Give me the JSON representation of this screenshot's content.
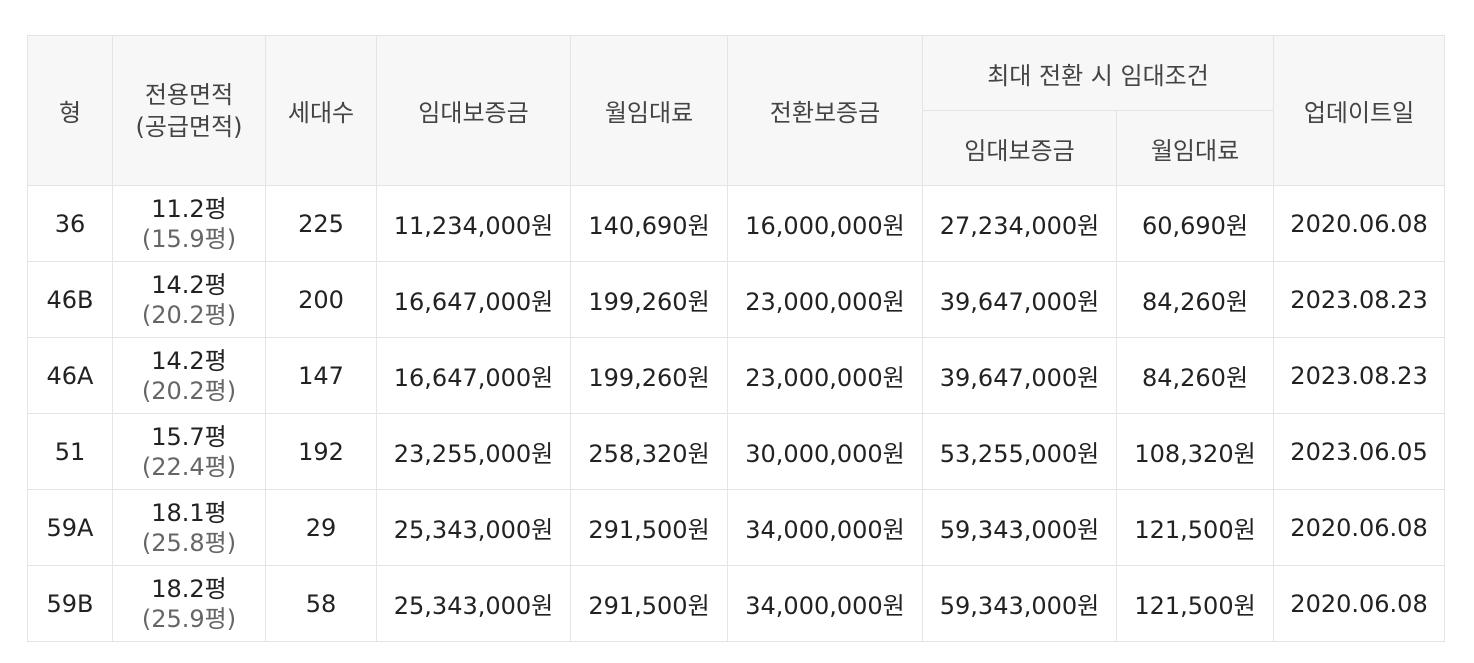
{
  "table": {
    "headers": {
      "type": "형",
      "area_line1": "전용면적",
      "area_line2": "(공급면적)",
      "households": "세대수",
      "deposit": "임대보증금",
      "monthly_rent": "월임대료",
      "conversion_deposit": "전환보증금",
      "max_conversion_group": "최대 전환 시 임대조건",
      "max_deposit": "임대보증금",
      "max_monthly_rent": "월임대료",
      "updated": "업데이트일"
    },
    "rows": [
      {
        "type": "36",
        "area": "11.2평",
        "supply_area": "(15.9평)",
        "households": "225",
        "deposit": "11,234,000원",
        "monthly_rent": "140,690원",
        "conversion_deposit": "16,000,000원",
        "max_deposit": "27,234,000원",
        "max_monthly_rent": "60,690원",
        "updated": "2020.06.08"
      },
      {
        "type": "46B",
        "area": "14.2평",
        "supply_area": "(20.2평)",
        "households": "200",
        "deposit": "16,647,000원",
        "monthly_rent": "199,260원",
        "conversion_deposit": "23,000,000원",
        "max_deposit": "39,647,000원",
        "max_monthly_rent": "84,260원",
        "updated": "2023.08.23"
      },
      {
        "type": "46A",
        "area": "14.2평",
        "supply_area": "(20.2평)",
        "households": "147",
        "deposit": "16,647,000원",
        "monthly_rent": "199,260원",
        "conversion_deposit": "23,000,000원",
        "max_deposit": "39,647,000원",
        "max_monthly_rent": "84,260원",
        "updated": "2023.08.23"
      },
      {
        "type": "51",
        "area": "15.7평",
        "supply_area": "(22.4평)",
        "households": "192",
        "deposit": "23,255,000원",
        "monthly_rent": "258,320원",
        "conversion_deposit": "30,000,000원",
        "max_deposit": "53,255,000원",
        "max_monthly_rent": "108,320원",
        "updated": "2023.06.05"
      },
      {
        "type": "59A",
        "area": "18.1평",
        "supply_area": "(25.8평)",
        "households": "29",
        "deposit": "25,343,000원",
        "monthly_rent": "291,500원",
        "conversion_deposit": "34,000,000원",
        "max_deposit": "59,343,000원",
        "max_monthly_rent": "121,500원",
        "updated": "2020.06.08"
      },
      {
        "type": "59B",
        "area": "18.2평",
        "supply_area": "(25.9평)",
        "households": "58",
        "deposit": "25,343,000원",
        "monthly_rent": "291,500원",
        "conversion_deposit": "34,000,000원",
        "max_deposit": "59,343,000원",
        "max_monthly_rent": "121,500원",
        "updated": "2020.06.08"
      }
    ]
  }
}
